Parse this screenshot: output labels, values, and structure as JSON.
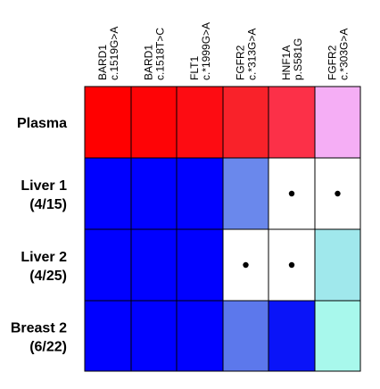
{
  "chart_data": {
    "type": "heatmap",
    "title": "",
    "columns": [
      {
        "gene": "BARD1",
        "variant": "c.1519G>A"
      },
      {
        "gene": "BARD1",
        "variant": "c.1518T>C"
      },
      {
        "gene": "FLT1",
        "variant": "c.*1999G>A"
      },
      {
        "gene": "FGFR2",
        "variant": "c.*313G>A"
      },
      {
        "gene": "HNF1A",
        "variant": "p.S581G"
      },
      {
        "gene": "FGFR2",
        "variant": "c.*303G>A"
      }
    ],
    "rows": [
      {
        "name": "Plasma",
        "count": ""
      },
      {
        "name": "Liver 1",
        "count": "(4/15)"
      },
      {
        "name": "Liver 2",
        "count": "(4/25)"
      },
      {
        "name": "Breast 2",
        "count": "(6/22)"
      }
    ],
    "cells": [
      [
        {
          "color": "#ff0000",
          "dot": false
        },
        {
          "color": "#fe0406",
          "dot": false
        },
        {
          "color": "#fd0c12",
          "dot": false
        },
        {
          "color": "#f9222a",
          "dot": false
        },
        {
          "color": "#fc3048",
          "dot": false
        },
        {
          "color": "#f5aef5",
          "dot": false
        }
      ],
      [
        {
          "color": "#0000ff",
          "dot": false
        },
        {
          "color": "#0000ff",
          "dot": false
        },
        {
          "color": "#0000ff",
          "dot": false
        },
        {
          "color": "#6a88ec",
          "dot": false
        },
        {
          "color": "#ffffff",
          "dot": true
        },
        {
          "color": "#ffffff",
          "dot": true
        }
      ],
      [
        {
          "color": "#0000ff",
          "dot": false
        },
        {
          "color": "#0000ff",
          "dot": false
        },
        {
          "color": "#0000ff",
          "dot": false
        },
        {
          "color": "#ffffff",
          "dot": true
        },
        {
          "color": "#ffffff",
          "dot": true
        },
        {
          "color": "#a0e8ec",
          "dot": false
        }
      ],
      [
        {
          "color": "#0000ff",
          "dot": false
        },
        {
          "color": "#0000ff",
          "dot": false
        },
        {
          "color": "#0000ff",
          "dot": false
        },
        {
          "color": "#5c78ec",
          "dot": false
        },
        {
          "color": "#0a14f8",
          "dot": false
        },
        {
          "color": "#a8f8ec",
          "dot": false
        }
      ]
    ]
  }
}
